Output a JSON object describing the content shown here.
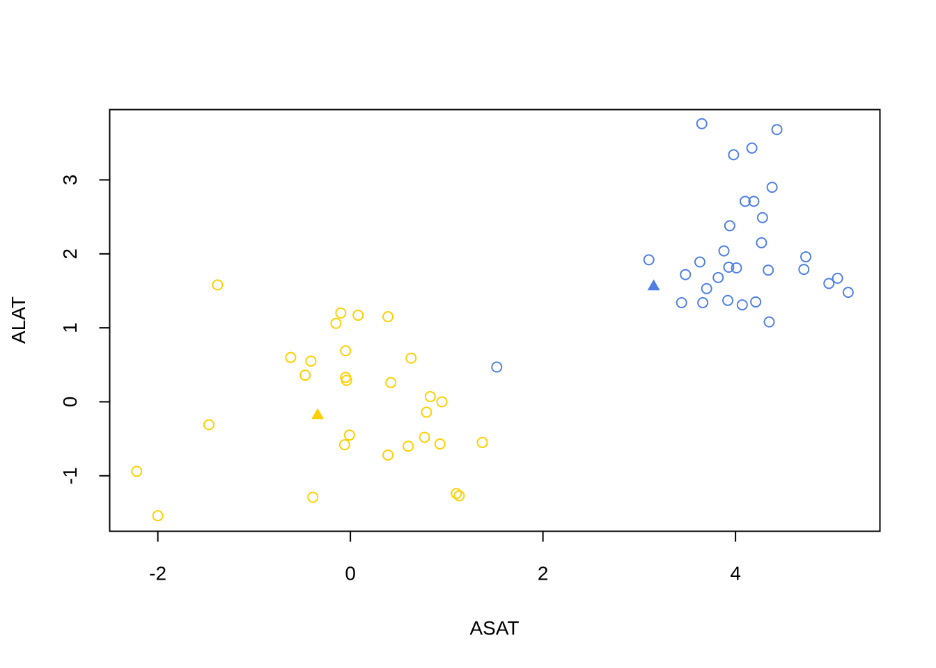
{
  "chart_data": {
    "type": "scatter",
    "xlabel": "ASAT",
    "ylabel": "ALAT",
    "xlim": [
      -2.5,
      5.5
    ],
    "ylim": [
      -1.75,
      3.95
    ],
    "xticks": [
      -2,
      0,
      2,
      4
    ],
    "yticks": [
      -1,
      0,
      1,
      2,
      3
    ],
    "grid": false,
    "legend": "none",
    "series": [
      {
        "color": "#FFD000",
        "marker": "open-circle",
        "points": [
          [
            -1.38,
            1.58
          ],
          [
            -0.62,
            0.6
          ],
          [
            -0.41,
            0.55
          ],
          [
            -0.47,
            0.36
          ],
          [
            -0.15,
            1.06
          ],
          [
            -0.1,
            1.2
          ],
          [
            0.08,
            1.17
          ],
          [
            0.39,
            1.15
          ],
          [
            -0.05,
            0.69
          ],
          [
            -0.05,
            0.33
          ],
          [
            -0.04,
            0.29
          ],
          [
            0.42,
            0.26
          ],
          [
            0.63,
            0.59
          ],
          [
            0.83,
            0.07
          ],
          [
            0.95,
            0.0
          ],
          [
            0.79,
            -0.14
          ],
          [
            -1.47,
            -0.31
          ],
          [
            -0.01,
            -0.45
          ],
          [
            -0.06,
            -0.58
          ],
          [
            0.39,
            -0.72
          ],
          [
            0.6,
            -0.6
          ],
          [
            0.77,
            -0.48
          ],
          [
            0.93,
            -0.57
          ],
          [
            1.37,
            -0.55
          ],
          [
            -2.22,
            -0.94
          ],
          [
            -2.0,
            -1.54
          ],
          [
            -0.39,
            -1.29
          ],
          [
            1.1,
            -1.24
          ],
          [
            1.13,
            -1.27
          ]
        ]
      },
      {
        "color": "#4F7FE5",
        "marker": "open-circle",
        "points": [
          [
            3.65,
            3.76
          ],
          [
            4.43,
            3.68
          ],
          [
            3.98,
            3.34
          ],
          [
            4.17,
            3.43
          ],
          [
            4.38,
            2.9
          ],
          [
            4.1,
            2.71
          ],
          [
            4.19,
            2.71
          ],
          [
            4.28,
            2.49
          ],
          [
            3.94,
            2.38
          ],
          [
            4.27,
            2.15
          ],
          [
            3.88,
            2.04
          ],
          [
            3.1,
            1.92
          ],
          [
            3.63,
            1.89
          ],
          [
            3.93,
            1.82
          ],
          [
            4.01,
            1.81
          ],
          [
            4.34,
            1.78
          ],
          [
            4.73,
            1.96
          ],
          [
            4.71,
            1.79
          ],
          [
            3.48,
            1.72
          ],
          [
            3.82,
            1.68
          ],
          [
            3.7,
            1.53
          ],
          [
            5.06,
            1.67
          ],
          [
            4.97,
            1.6
          ],
          [
            5.17,
            1.48
          ],
          [
            3.44,
            1.34
          ],
          [
            3.66,
            1.34
          ],
          [
            3.92,
            1.37
          ],
          [
            4.07,
            1.31
          ],
          [
            4.21,
            1.35
          ],
          [
            4.35,
            1.08
          ],
          [
            1.52,
            0.47
          ]
        ]
      }
    ],
    "centers": [
      {
        "color": "#FFD000",
        "marker": "filled-triangle",
        "point": [
          -0.34,
          -0.17
        ]
      },
      {
        "color": "#4F7FE5",
        "marker": "filled-triangle",
        "point": [
          3.15,
          1.57
        ]
      }
    ]
  }
}
